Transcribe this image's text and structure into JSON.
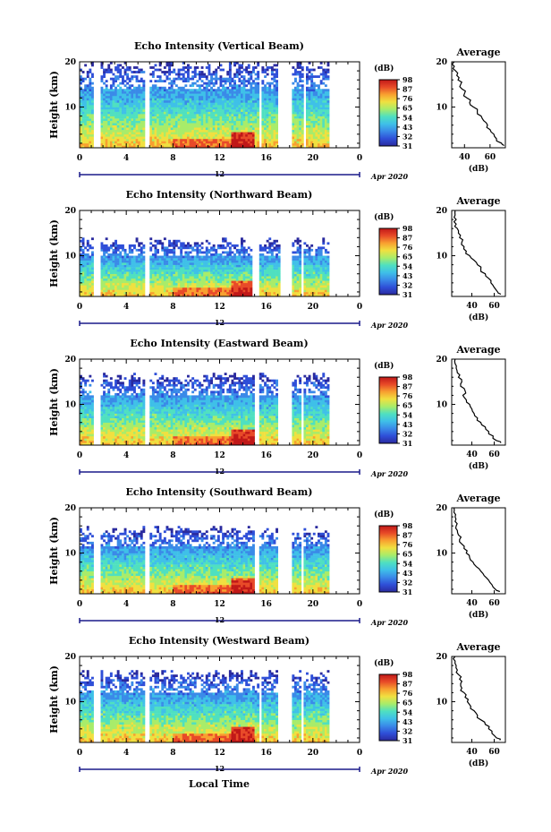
{
  "figure": {
    "xlabel": "Local Time",
    "date_label": "Apr 2020",
    "day_label": "12",
    "colorbar_unit": "(dB)",
    "colorbar_ticks": [
      "31",
      "32",
      "43",
      "54",
      "65",
      "76",
      "87",
      "98"
    ],
    "profile_title": "Average",
    "profile_xlabel": "(dB)",
    "colors": {
      "colormap": [
        "#2a2a9e",
        "#2f4fd8",
        "#3a8ae8",
        "#3fc0e8",
        "#4fe0c0",
        "#a8ec6a",
        "#f0e040",
        "#f8a030",
        "#e84a28",
        "#c01818"
      ],
      "frame": "#000000",
      "date_axis": "#1a1a8a"
    }
  },
  "chart_data": [
    {
      "type": "heatmap",
      "title": "Echo Intensity (Vertical Beam)",
      "ylabel": "Height (km)",
      "xlim": [
        0,
        24
      ],
      "ylim": [
        1,
        20
      ],
      "xticks": [
        "0",
        "4",
        "8",
        "12",
        "16",
        "20",
        "0"
      ],
      "yticks": [
        "10",
        "20"
      ],
      "value_range_dB": [
        31,
        98
      ],
      "top_km": 19,
      "data_gaps_hours": [
        [
          1.3,
          1.7
        ],
        [
          5.7,
          6.1
        ],
        [
          15.3,
          15.6
        ],
        [
          17.0,
          18.1
        ],
        [
          19.1,
          19.3
        ]
      ],
      "data_end_hour": 21.2,
      "average_profile": {
        "title": "Average",
        "xlabel": "(dB)",
        "xlim": [
          30,
          72
        ],
        "ylim": [
          1,
          20
        ],
        "xticks": [
          "40",
          "60"
        ],
        "yticks": [
          "10",
          "20"
        ],
        "height_km": [
          1.5,
          2,
          3,
          4,
          5,
          6,
          7,
          8,
          9,
          10,
          11,
          12,
          13,
          14,
          15,
          16,
          17,
          18,
          19,
          20
        ],
        "value_dB": [
          71,
          69,
          65,
          63,
          60,
          58,
          55,
          53,
          50,
          47,
          44,
          42,
          40,
          38,
          37,
          35,
          34,
          33,
          32,
          32
        ]
      }
    },
    {
      "type": "heatmap",
      "title": "Echo Intensity (Northward Beam)",
      "ylabel": "Height (km)",
      "xlim": [
        0,
        24
      ],
      "ylim": [
        1,
        20
      ],
      "xticks": [
        "0",
        "4",
        "8",
        "12",
        "16",
        "20",
        "0"
      ],
      "yticks": [
        "10",
        "20"
      ],
      "value_range_dB": [
        31,
        98
      ],
      "top_km": 13,
      "data_gaps_hours": [
        [
          1.3,
          1.7
        ],
        [
          5.7,
          6.1
        ],
        [
          14.8,
          15.4
        ],
        [
          17.2,
          18.1
        ],
        [
          18.9,
          19.1
        ]
      ],
      "data_end_hour": 21.2,
      "average_profile": {
        "title": "Average",
        "xlabel": "(dB)",
        "xlim": [
          22,
          70
        ],
        "ylim": [
          1,
          20
        ],
        "xticks": [
          "40",
          "60"
        ],
        "yticks": [
          "10",
          "20"
        ],
        "height_km": [
          1.5,
          2,
          3,
          4,
          5,
          6,
          7,
          8,
          9,
          10,
          11,
          12,
          13,
          14,
          15,
          16,
          17,
          18,
          19,
          20
        ],
        "value_dB": [
          66,
          63,
          60,
          57,
          55,
          52,
          48,
          45,
          42,
          38,
          35,
          33,
          31,
          29,
          28,
          27,
          26,
          26,
          25,
          25
        ]
      }
    },
    {
      "type": "heatmap",
      "title": "Echo Intensity (Eastward Beam)",
      "ylabel": "Height (km)",
      "xlim": [
        0,
        24
      ],
      "ylim": [
        1,
        20
      ],
      "xticks": [
        "0",
        "4",
        "8",
        "12",
        "16",
        "20",
        "0"
      ],
      "yticks": [
        "10",
        "20"
      ],
      "value_range_dB": [
        31,
        98
      ],
      "top_km": 16,
      "data_gaps_hours": [
        [
          1.3,
          1.7
        ],
        [
          5.7,
          6.1
        ],
        [
          15.0,
          15.4
        ],
        [
          17.0,
          18.1
        ],
        [
          18.9,
          19.1
        ]
      ],
      "data_end_hour": 21.2,
      "average_profile": {
        "title": "Average",
        "xlabel": "(dB)",
        "xlim": [
          22,
          70
        ],
        "ylim": [
          1,
          20
        ],
        "xticks": [
          "40",
          "60"
        ],
        "yticks": [
          "10",
          "20"
        ],
        "height_km": [
          1.5,
          2,
          3,
          4,
          5,
          6,
          7,
          8,
          9,
          10,
          11,
          12,
          13,
          14,
          15,
          16,
          17,
          18,
          19,
          20
        ],
        "value_dB": [
          66,
          62,
          59,
          55,
          52,
          48,
          45,
          42,
          40,
          38,
          35,
          32,
          34,
          30,
          31,
          28,
          27,
          26,
          25,
          25
        ]
      }
    },
    {
      "type": "heatmap",
      "title": "Echo Intensity (Southward Beam)",
      "ylabel": "Height (km)",
      "xlim": [
        0,
        24
      ],
      "ylim": [
        1,
        20
      ],
      "xticks": [
        "0",
        "4",
        "8",
        "12",
        "16",
        "20",
        "0"
      ],
      "yticks": [
        "10",
        "20"
      ],
      "value_range_dB": [
        31,
        98
      ],
      "top_km": 15,
      "data_gaps_hours": [
        [
          1.3,
          1.7
        ],
        [
          5.7,
          6.1
        ],
        [
          15.0,
          15.4
        ],
        [
          17.0,
          18.1
        ],
        [
          18.9,
          19.1
        ]
      ],
      "data_end_hour": 21.2,
      "average_profile": {
        "title": "Average",
        "xlabel": "(dB)",
        "xlim": [
          22,
          70
        ],
        "ylim": [
          1,
          20
        ],
        "xticks": [
          "40",
          "60"
        ],
        "yticks": [
          "10",
          "20"
        ],
        "height_km": [
          1.5,
          2,
          3,
          4,
          5,
          6,
          7,
          8,
          9,
          10,
          11,
          12,
          13,
          14,
          15,
          16,
          17,
          18,
          19,
          20
        ],
        "value_dB": [
          65,
          61,
          58,
          55,
          51,
          48,
          44,
          41,
          38,
          35,
          33,
          31,
          29,
          28,
          27,
          26,
          25,
          25,
          24,
          24
        ]
      }
    },
    {
      "type": "heatmap",
      "title": "Echo Intensity (Westward Beam)",
      "ylabel": "Height (km)",
      "xlim": [
        0,
        24
      ],
      "ylim": [
        1,
        20
      ],
      "xticks": [
        "0",
        "4",
        "8",
        "12",
        "16",
        "20",
        "0"
      ],
      "yticks": [
        "10",
        "20"
      ],
      "value_range_dB": [
        31,
        98
      ],
      "top_km": 16,
      "data_gaps_hours": [
        [
          1.3,
          1.7
        ],
        [
          5.7,
          6.1
        ],
        [
          15.3,
          15.6
        ],
        [
          17.0,
          18.1
        ],
        [
          18.9,
          19.1
        ]
      ],
      "data_end_hour": 21.2,
      "average_profile": {
        "title": "Average",
        "xlabel": "(dB)",
        "xlim": [
          22,
          70
        ],
        "ylim": [
          1,
          20
        ],
        "xticks": [
          "40",
          "60"
        ],
        "yticks": [
          "10",
          "20"
        ],
        "height_km": [
          1.5,
          2,
          3,
          4,
          5,
          6,
          7,
          8,
          9,
          10,
          11,
          12,
          13,
          14,
          15,
          16,
          17,
          18,
          19,
          20
        ],
        "value_dB": [
          65,
          62,
          58,
          55,
          52,
          48,
          45,
          42,
          39,
          36,
          34,
          33,
          31,
          30,
          29,
          28,
          27,
          26,
          25,
          25
        ]
      }
    }
  ]
}
